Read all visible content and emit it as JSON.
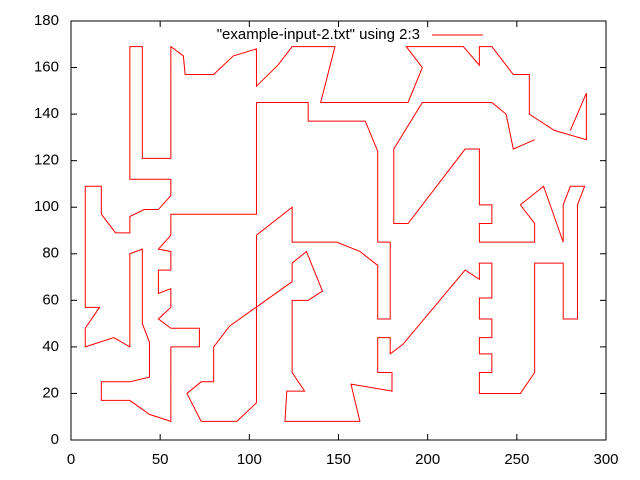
{
  "chart_data": {
    "type": "line",
    "x": [
      280,
      289,
      289,
      271,
      257,
      257,
      248,
      236,
      229,
      229,
      220,
      188,
      197,
      189,
      140,
      148,
      124,
      116,
      104,
      104,
      91,
      80,
      64,
      63,
      56,
      56,
      40,
      40,
      33,
      33,
      56,
      56,
      49,
      41,
      33,
      33,
      25,
      17,
      17,
      8,
      8,
      16,
      8,
      8,
      24,
      33,
      33,
      40,
      40,
      44,
      44,
      33,
      17,
      17,
      33,
      44,
      56,
      56,
      72,
      72,
      56,
      49,
      56,
      56,
      49,
      49,
      56,
      56,
      49,
      56,
      56,
      104,
      104,
      133,
      133,
      165,
      172,
      172,
      179,
      179,
      172,
      172,
      162,
      149,
      124,
      124,
      104,
      104,
      93,
      73,
      65,
      73,
      80,
      80,
      89,
      124,
      124,
      132,
      141,
      133,
      124,
      124,
      131,
      121,
      120,
      162,
      157,
      180,
      180,
      172,
      172,
      179,
      179,
      186,
      221,
      229,
      229,
      236,
      236,
      229,
      229,
      236,
      236,
      229,
      229,
      236,
      236,
      229,
      229,
      252,
      260,
      260,
      276,
      276,
      284,
      284,
      288,
      280,
      276,
      276,
      265,
      252,
      260,
      260,
      229,
      229,
      236,
      236,
      229,
      229,
      221,
      189,
      181,
      181,
      197,
      236,
      244,
      248,
      260
    ],
    "series": [
      {
        "name": "\"example-input-2.txt\" using 2:3",
        "color": "#ff0000",
        "values": [
          133,
          149,
          129,
          133,
          140,
          157,
          157,
          169,
          169,
          161,
          169,
          169,
          160,
          145,
          145,
          169,
          169,
          161,
          152,
          168,
          165,
          157,
          157,
          165,
          169,
          121,
          121,
          169,
          169,
          112,
          112,
          105,
          99,
          99,
          96,
          89,
          89,
          97,
          109,
          109,
          57,
          57,
          48,
          40,
          44,
          40,
          80,
          82,
          50,
          42,
          27,
          25,
          25,
          17,
          17,
          11,
          8,
          40,
          40,
          48,
          48,
          52,
          57,
          65,
          63,
          73,
          73,
          81,
          82,
          88,
          97,
          97,
          145,
          145,
          137,
          137,
          124,
          85,
          85,
          52,
          52,
          75,
          81,
          85,
          85,
          100,
          88,
          16,
          8,
          8,
          20,
          25,
          25,
          40,
          49,
          68,
          76,
          81,
          64,
          60,
          60,
          29,
          21,
          21,
          8,
          8,
          24,
          21,
          29,
          29,
          44,
          44,
          37,
          41,
          73,
          69,
          76,
          76,
          61,
          61,
          52,
          52,
          44,
          44,
          37,
          37,
          29,
          29,
          20,
          20,
          29,
          76,
          76,
          52,
          52,
          101,
          109,
          109,
          101,
          85,
          109,
          101,
          93,
          85,
          85,
          93,
          93,
          101,
          101,
          125,
          125,
          93,
          93,
          125,
          145,
          145,
          140,
          125,
          129
        ]
      }
    ],
    "xlim": [
      0,
      300
    ],
    "xticks": [
      0,
      50,
      100,
      150,
      200,
      250,
      300
    ],
    "ylim": [
      0,
      180
    ],
    "yticks": [
      0,
      20,
      40,
      60,
      80,
      100,
      120,
      140,
      160,
      180
    ],
    "grid": false,
    "legend": "top-right"
  }
}
